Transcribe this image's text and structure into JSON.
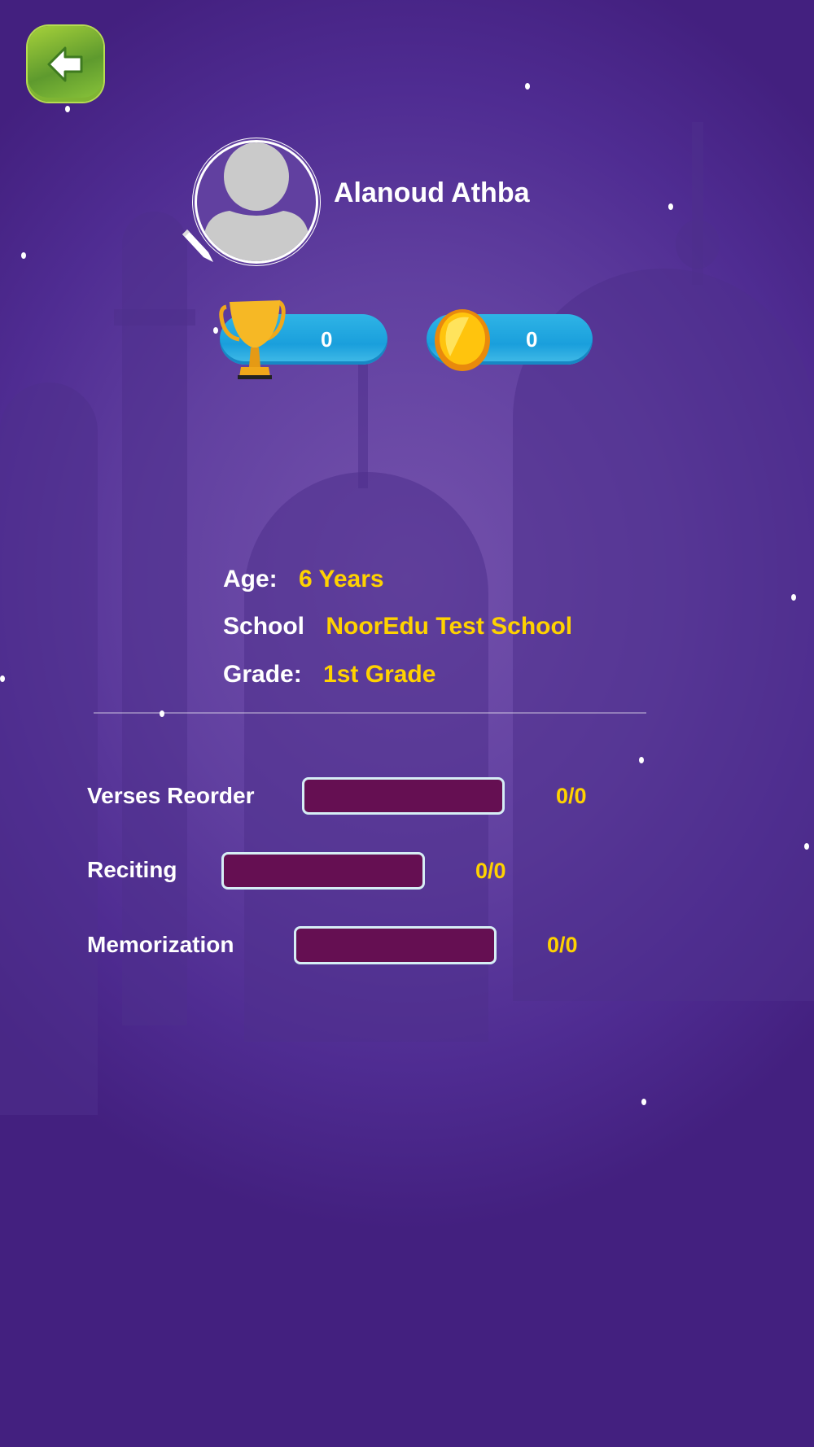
{
  "colors": {
    "background": "#5a37a0",
    "accent_value": "#ffd200",
    "bar_track": "#650f52",
    "pill": "#1fa6de",
    "back_button": "#6aa62f"
  },
  "back_button": {
    "icon": "arrow-left-icon"
  },
  "profile": {
    "name": "Alanoud Athba",
    "avatar_icon": "user-placeholder-icon",
    "edit_icon": "pencil-icon"
  },
  "stats": {
    "trophies": {
      "icon": "trophy-icon",
      "value": "0"
    },
    "coins": {
      "icon": "coin-icon",
      "value": "0"
    }
  },
  "info": [
    {
      "label": "Age:",
      "value": "6 Years"
    },
    {
      "label": "School",
      "value": "NoorEdu Test School"
    },
    {
      "label": "Grade:",
      "value": "1st Grade"
    }
  ],
  "progress": [
    {
      "label": "Verses Reorder",
      "score": "0/0",
      "fraction": 0
    },
    {
      "label": "Reciting",
      "score": "0/0",
      "fraction": 0
    },
    {
      "label": "Memorization",
      "score": "0/0",
      "fraction": 0
    }
  ]
}
